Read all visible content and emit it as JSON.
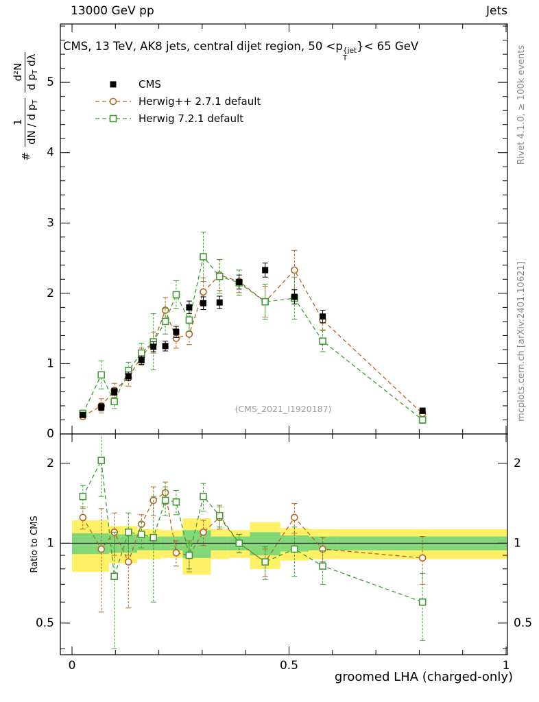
{
  "header": {
    "left_label": "13000 GeV pp",
    "right_label": "Jets"
  },
  "panel_title": {
    "pre": "CMS, 13 TeV, AK8 jets, central dijet region, 50 <p",
    "sup": "{jet",
    "sub": "T",
    "post": "}< 65 GeV"
  },
  "y_axis_label": {
    "hash": "#",
    "f1_num": "1",
    "f1_den_pre": "dN / d p",
    "f1_den_sub": "T",
    "f2_num": "d²N",
    "f2_den_pre": "d p",
    "f2_den_sub": "T",
    "f2_den_post": " dλ"
  },
  "ratio_axis_label": "Ratio to CMS",
  "x_axis_label": "groomed LHA (charged-only)",
  "watermark": "(CMS_2021_I1920187)",
  "side_notes": {
    "top": "Rivet 4.1.0, ≥ 100k events",
    "bottom": "mcplots.cern.ch [arXiv:2401.10621]"
  },
  "chart_data": {
    "type": "line",
    "title": "CMS, 13 TeV, AK8 jets, central dijet region, 50 <pT{jet}< 65 GeV",
    "xlabel": "groomed LHA (charged-only)",
    "ylabel": "# 1/(dN/dpT) d2N/(dpT dlambda)",
    "ratio_label": "Ratio to CMS",
    "xlim": [
      -0.027,
      1.003
    ],
    "x_ticks": {
      "values": [
        0,
        0.5,
        1
      ],
      "labels": [
        "0",
        "0.5",
        "1"
      ],
      "minor_step": 0.1
    },
    "main_y_ticks": {
      "values": [
        0,
        1,
        2,
        3,
        4,
        5
      ],
      "labels": [
        "0",
        "1",
        "2",
        "3",
        "4",
        "5"
      ],
      "minor_step": 0.2,
      "ylim": [
        0,
        5.83
      ]
    },
    "ratio_y_ticks": {
      "values": [
        0.5,
        1,
        2
      ],
      "labels": [
        "0.5",
        "1",
        "2"
      ],
      "minor": [
        0.4,
        0.6,
        0.7,
        0.8,
        0.9
      ],
      "ylim": [
        0.38,
        2.58
      ],
      "scale": "log"
    },
    "bin_edges": [
      0,
      0.05,
      0.085,
      0.11,
      0.15,
      0.17,
      0.205,
      0.225,
      0.255,
      0.285,
      0.32,
      0.36,
      0.41,
      0.48,
      0.545,
      0.61,
      1.005
    ],
    "x": [
      0.025,
      0.0675,
      0.0975,
      0.13,
      0.16,
      0.1875,
      0.215,
      0.24,
      0.27,
      0.3025,
      0.34,
      0.385,
      0.445,
      0.5125,
      0.5775,
      0.8075
    ],
    "series": [
      {
        "key": "cms",
        "label": "CMS",
        "color": "#000000",
        "marker": "filled-square",
        "line": "none",
        "values": [
          0.27,
          0.38,
          0.6,
          0.82,
          1.05,
          1.24,
          1.25,
          1.45,
          1.8,
          1.86,
          1.87,
          2.16,
          2.33,
          1.95,
          1.67,
          0.33
        ],
        "errors": [
          0.03,
          0.05,
          0.05,
          0.06,
          0.06,
          0.07,
          0.07,
          0.08,
          0.09,
          0.09,
          0.09,
          0.1,
          0.1,
          0.1,
          0.09,
          0.04
        ]
      },
      {
        "key": "herwigpp",
        "label": "Herwig++ 2.7.1 default",
        "color": "#b5641e",
        "marker": "open-circle",
        "line": "dashed",
        "values": [
          0.25,
          0.4,
          0.62,
          0.8,
          1.1,
          1.3,
          1.76,
          1.36,
          1.42,
          2.02,
          2.26,
          2.17,
          1.88,
          2.33,
          1.62,
          0.29
        ],
        "errors": [
          0.04,
          0.1,
          0.1,
          0.12,
          0.12,
          0.15,
          0.18,
          0.14,
          0.15,
          0.2,
          0.22,
          0.16,
          0.22,
          0.28,
          0.14,
          0.05
        ],
        "ratio": [
          1.25,
          0.95,
          1.1,
          0.85,
          1.18,
          1.45,
          1.55,
          0.92,
          0.9,
          1.1,
          1.25,
          1.0,
          0.85,
          1.25,
          0.95,
          0.88
        ],
        "ratio_errors": [
          0.12,
          0.4,
          0.2,
          0.28,
          0.1,
          0.18,
          0.15,
          0.1,
          0.12,
          0.12,
          0.12,
          0.08,
          0.1,
          0.16,
          0.1,
          0.18
        ]
      },
      {
        "key": "herwig7",
        "label": "Herwig 7.2.1 default",
        "color": "#3f9e33",
        "marker": "open-square",
        "line": "dashed",
        "values": [
          0.29,
          0.84,
          0.46,
          0.9,
          1.15,
          1.31,
          1.6,
          1.98,
          1.62,
          2.52,
          2.24,
          2.15,
          1.88,
          1.93,
          1.32,
          0.2
        ],
        "errors": [
          0.05,
          0.2,
          0.1,
          0.12,
          0.14,
          0.4,
          0.18,
          0.2,
          0.16,
          0.35,
          0.24,
          0.18,
          0.25,
          0.3,
          0.15,
          0.05
        ],
        "ratio": [
          1.5,
          2.05,
          0.75,
          1.1,
          1.08,
          1.05,
          1.45,
          1.43,
          0.9,
          1.5,
          1.27,
          1.0,
          0.85,
          0.95,
          0.82,
          0.6
        ],
        "ratio_errors": [
          0.15,
          0.55,
          0.35,
          0.2,
          0.12,
          0.45,
          0.18,
          0.15,
          0.1,
          0.18,
          0.12,
          0.08,
          0.12,
          0.2,
          0.12,
          0.17
        ]
      }
    ],
    "ratio_bands": {
      "yellow_color": "#fff066",
      "green_color": "#82d878",
      "yellow_half_width": [
        0.22,
        0.22,
        0.16,
        0.16,
        0.13,
        0.13,
        0.12,
        0.12,
        0.24,
        0.24,
        0.13,
        0.12,
        0.2,
        0.14,
        0.13,
        0.13
      ],
      "green_half_width": [
        0.09,
        0.09,
        0.08,
        0.08,
        0.06,
        0.06,
        0.06,
        0.06,
        0.12,
        0.12,
        0.06,
        0.06,
        0.1,
        0.07,
        0.06,
        0.06
      ]
    },
    "ratio_reference": 1,
    "legend_position": "top-left-inside"
  }
}
